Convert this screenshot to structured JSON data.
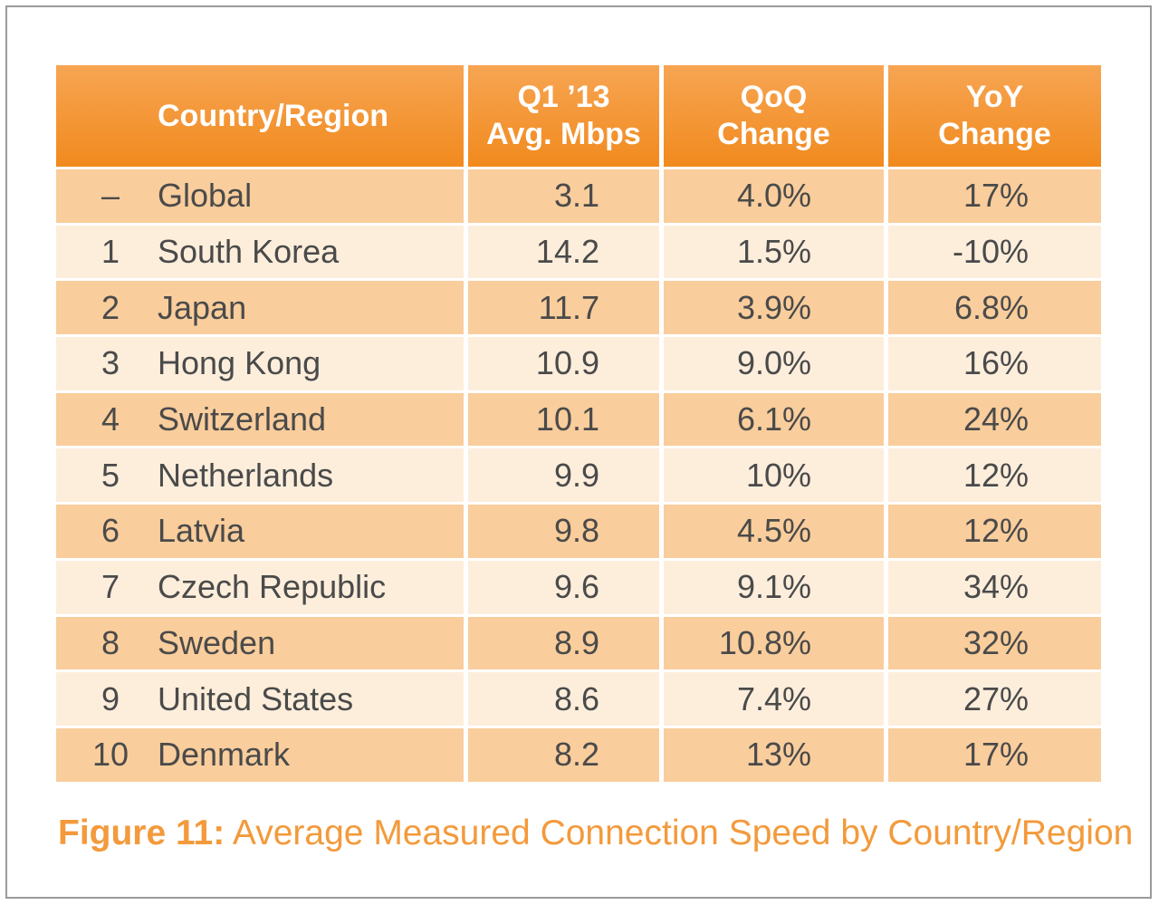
{
  "chart_data": {
    "type": "table",
    "columns": [
      "Country/Region",
      "Q1 ’13\nAvg. Mbps",
      "QoQ\nChange",
      "YoY\nChange"
    ],
    "header": {
      "country": "Country/Region",
      "speed_line1": "Q1 ’13",
      "speed_line2": "Avg. Mbps",
      "qoq_line1": "QoQ",
      "qoq_line2": "Change",
      "yoy_line1": "YoY",
      "yoy_line2": "Change"
    },
    "rows": [
      {
        "rank": "–",
        "country": "Global",
        "speed": "3.1",
        "qoq": "4.0%",
        "yoy": "17%"
      },
      {
        "rank": "1",
        "country": "South Korea",
        "speed": "14.2",
        "qoq": "1.5%",
        "yoy": "-10%"
      },
      {
        "rank": "2",
        "country": "Japan",
        "speed": "11.7",
        "qoq": "3.9%",
        "yoy": "6.8%"
      },
      {
        "rank": "3",
        "country": "Hong Kong",
        "speed": "10.9",
        "qoq": "9.0%",
        "yoy": "16%"
      },
      {
        "rank": "4",
        "country": "Switzerland",
        "speed": "10.1",
        "qoq": "6.1%",
        "yoy": "24%"
      },
      {
        "rank": "5",
        "country": "Netherlands",
        "speed": "9.9",
        "qoq": "10%",
        "yoy": "12%"
      },
      {
        "rank": "6",
        "country": "Latvia",
        "speed": "9.8",
        "qoq": "4.5%",
        "yoy": "12%"
      },
      {
        "rank": "7",
        "country": "Czech Republic",
        "speed": "9.6",
        "qoq": "9.1%",
        "yoy": "34%"
      },
      {
        "rank": "8",
        "country": "Sweden",
        "speed": "8.9",
        "qoq": "10.8%",
        "yoy": "32%"
      },
      {
        "rank": "9",
        "country": "United States",
        "speed": "8.6",
        "qoq": "7.4%",
        "yoy": "27%"
      },
      {
        "rank": "10",
        "country": "Denmark",
        "speed": "8.2",
        "qoq": "13%",
        "yoy": "17%"
      }
    ],
    "caption_lead": "Figure 11:",
    "caption_text": "Average Measured Connection Speed by Country/Region"
  },
  "colors": {
    "header_bg": "#f18a1e",
    "row_dark": "#f9cd9c",
    "row_light": "#fdeedc",
    "caption": "#f39a3c",
    "text": "#4a4a4a"
  }
}
